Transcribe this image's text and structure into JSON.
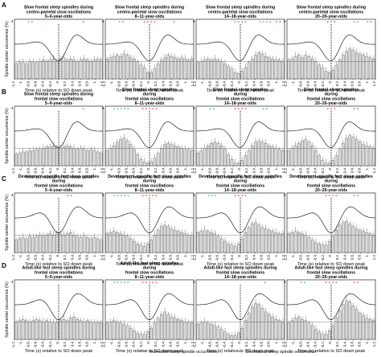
{
  "figure": {
    "x_axis_label": "Time (s) relative to SO down peak",
    "legend": {
      "increase_label": "Increased sleep spindle occurrence",
      "decrease_label": "Decreased sleep spindle occurrence",
      "increase_color": "#2ca25f",
      "decrease_color": "#d7263d"
    },
    "x_ticks": [
      "-1.2",
      "-1",
      "-0.8",
      "-0.6",
      "-0.4",
      "-0.2",
      "0",
      "0.2",
      "0.4",
      "0.6",
      "0.8",
      "1",
      "1.2"
    ]
  },
  "rows": [
    {
      "label": "A",
      "ylabel": "Spindle center occurrence (%)",
      "top_tick": "4"
    },
    {
      "label": "B",
      "ylabel": "Spindle center occurrence (%)",
      "top_tick": "4"
    },
    {
      "label": "C",
      "ylabel": "Spindle center occurrence (%)",
      "top_tick": "4"
    },
    {
      "label": "D",
      "ylabel": "Spindle center occurrence (%)",
      "top_tick": "4"
    }
  ],
  "chart_data": [
    {
      "type": "bar",
      "row": 0,
      "col": 0,
      "title": [
        "Slow frontal sleep spindles during",
        "centro-parietal slow oscillations",
        "5–6-year-olds"
      ],
      "curve": "down",
      "ylim": [
        0,
        4
      ],
      "values": [
        1.2,
        1.3,
        1.3,
        1.2,
        1.4,
        1.3,
        1.3,
        1.4,
        1.5,
        1.4,
        1.5,
        1.6,
        1.4,
        1.6,
        1.7,
        1.5,
        1.6,
        1.5,
        1.4,
        1.5,
        1.6,
        1.5,
        1.4,
        1.5,
        1.6,
        1.5
      ],
      "markers": [
        {
          "kind": "increase",
          "text": "* *",
          "pos": "left"
        },
        {
          "kind": "decrease",
          "text": "*",
          "pos": "right"
        }
      ]
    },
    {
      "type": "bar",
      "row": 0,
      "col": 1,
      "title": [
        "Slow frontal sleep spindles during",
        "centro-parietal slow oscillations",
        "8–11-year-olds"
      ],
      "curve": "down",
      "ylim": [
        0,
        4
      ],
      "values": [
        1.6,
        1.7,
        1.8,
        1.9,
        1.8,
        2.0,
        1.9,
        1.7,
        1.6,
        1.4,
        1.1,
        0.9,
        0.5,
        0.5,
        0.8,
        1.2,
        1.5,
        1.7,
        1.9,
        1.8,
        1.7,
        1.6,
        1.7,
        1.6,
        1.5,
        1.6
      ],
      "markers": [
        {
          "kind": "increase",
          "text": "* *",
          "pos": "left"
        },
        {
          "kind": "decrease",
          "text": "* * * *",
          "pos": "center"
        },
        {
          "kind": "increase",
          "text": "*",
          "pos": "right"
        }
      ]
    },
    {
      "type": "bar",
      "row": 0,
      "col": 2,
      "title": [
        "Slow frontal sleep spindles during",
        "centro-parietal slow oscillations",
        "14–18-year-olds"
      ],
      "curve": "down",
      "ylim": [
        0,
        4
      ],
      "values": [
        1.3,
        1.4,
        1.5,
        1.6,
        1.5,
        1.6,
        1.5,
        1.4,
        1.2,
        1.0,
        0.8,
        0.5,
        0.4,
        0.6,
        0.9,
        1.3,
        1.6,
        1.9,
        2.1,
        2.0,
        1.8,
        1.7,
        1.6,
        1.5,
        1.5,
        1.4
      ],
      "markers": [
        {
          "kind": "decrease",
          "text": "* * * *",
          "pos": "center"
        },
        {
          "kind": "increase",
          "text": "* * * *",
          "pos": "right"
        },
        {
          "kind": "decrease",
          "text": "* *",
          "pos": "far-right"
        }
      ]
    },
    {
      "type": "bar",
      "row": 0,
      "col": 3,
      "title": [
        "Slow frontal sleep spindles during",
        "centro-parietal slow oscillations",
        "20–26-year-olds"
      ],
      "curve": "down",
      "ylim": [
        0,
        4
      ],
      "values": [
        1.5,
        1.6,
        1.8,
        1.9,
        1.7,
        1.9,
        1.8,
        1.6,
        1.4,
        1.1,
        0.9,
        0.6,
        0.5,
        0.7,
        1.1,
        1.5,
        1.9,
        2.2,
        2.4,
        2.3,
        2.1,
        2.0,
        1.9,
        1.8,
        1.7,
        1.6
      ],
      "markers": [
        {
          "kind": "decrease",
          "text": "* * *",
          "pos": "center"
        },
        {
          "kind": "increase",
          "text": "* *",
          "pos": "right"
        },
        {
          "kind": "decrease",
          "text": "* *",
          "pos": "far-right"
        }
      ]
    },
    {
      "type": "bar",
      "row": 1,
      "col": 0,
      "title": [
        "Slow frontal sleep spindles during",
        "frontal slow oscillations",
        "5–6-year-olds"
      ],
      "curve": "down",
      "ylim": [
        0,
        4
      ],
      "values": [
        0.9,
        1.0,
        1.1,
        1.1,
        1.2,
        1.2,
        1.3,
        1.3,
        1.4,
        1.5,
        1.5,
        1.6,
        1.5,
        1.4,
        1.5,
        1.6,
        1.5,
        1.4,
        1.3,
        1.4,
        1.3,
        1.2,
        1.3,
        1.2,
        1.1,
        1.0
      ],
      "markers": [
        {
          "kind": "decrease",
          "text": "*",
          "pos": "right"
        }
      ]
    },
    {
      "type": "bar",
      "row": 1,
      "col": 1,
      "title": [
        "Slow frontal sleep spindles",
        "during",
        "frontal slow oscillations",
        "8–11-year-olds"
      ],
      "curve": "down",
      "ylim": [
        0,
        4
      ],
      "values": [
        1.2,
        1.4,
        1.6,
        1.9,
        2.1,
        2.2,
        2.0,
        1.7,
        1.3,
        0.9,
        0.5,
        0.3,
        0.2,
        0.3,
        0.6,
        1.0,
        1.4,
        1.7,
        1.8,
        1.7,
        1.6,
        1.5,
        1.4,
        1.3,
        1.3,
        1.2
      ],
      "markers": [
        {
          "kind": "increase",
          "text": "* * * * *",
          "pos": "left"
        },
        {
          "kind": "decrease",
          "text": "* * * * *",
          "pos": "center"
        }
      ]
    },
    {
      "type": "bar",
      "row": 1,
      "col": 2,
      "title": [
        "Slow frontal sleep spindles",
        "during",
        "frontal slow oscillations",
        "14–18-year-olds"
      ],
      "curve": "down",
      "ylim": [
        0,
        4
      ],
      "values": [
        1.0,
        1.2,
        1.4,
        1.6,
        1.8,
        1.9,
        1.8,
        1.6,
        1.3,
        0.9,
        0.5,
        0.2,
        0.2,
        0.4,
        0.8,
        1.2,
        1.6,
        1.9,
        2.0,
        1.9,
        1.8,
        1.6,
        1.5,
        1.4,
        1.3,
        1.2
      ],
      "markers": [
        {
          "kind": "increase",
          "text": "* *",
          "pos": "left"
        },
        {
          "kind": "decrease",
          "text": "* * * *",
          "pos": "center"
        },
        {
          "kind": "increase",
          "text": "* *",
          "pos": "right"
        }
      ]
    },
    {
      "type": "bar",
      "row": 1,
      "col": 3,
      "title": [
        "Slow frontal sleep spindles",
        "during",
        "frontal slow oscillations",
        "20–26-year-olds"
      ],
      "curve": "down",
      "ylim": [
        0,
        4
      ],
      "values": [
        1.2,
        1.4,
        1.6,
        1.8,
        2.0,
        2.1,
        1.9,
        1.6,
        1.2,
        0.8,
        0.4,
        0.2,
        0.2,
        0.4,
        0.8,
        1.3,
        1.8,
        2.2,
        2.4,
        2.3,
        2.1,
        1.9,
        1.7,
        1.6,
        1.5,
        1.4
      ],
      "markers": [
        {
          "kind": "decrease",
          "text": "* * *",
          "pos": "center"
        },
        {
          "kind": "decrease",
          "text": "* *",
          "pos": "right"
        }
      ]
    },
    {
      "type": "bar",
      "row": 2,
      "col": 0,
      "title": [
        "Develoment-specific fast sleep spindles",
        "during",
        "frontal slow oscillations",
        "5–6-year-olds"
      ],
      "curve": "up",
      "ylim": [
        0,
        4
      ],
      "values": [
        1.0,
        1.1,
        1.2,
        1.1,
        1.3,
        1.2,
        1.3,
        1.4,
        1.3,
        1.4,
        1.5,
        1.4,
        1.6,
        1.5,
        1.4,
        1.5,
        1.6,
        1.4,
        1.3,
        1.2,
        1.3,
        1.2,
        1.1,
        1.2,
        1.1,
        1.0
      ],
      "markers": [
        {
          "kind": "decrease",
          "text": "* *",
          "pos": "center-right"
        }
      ]
    },
    {
      "type": "bar",
      "row": 2,
      "col": 1,
      "title": [
        "Development-specific fast sleep spindles",
        "during",
        "frontal slow oscillations",
        "8–11-year-olds"
      ],
      "curve": "up",
      "ylim": [
        0,
        4
      ],
      "values": [
        1.5,
        1.6,
        1.7,
        1.6,
        1.5,
        1.4,
        1.3,
        1.1,
        0.9,
        0.7,
        0.6,
        0.5,
        0.7,
        1.0,
        1.4,
        1.8,
        2.1,
        2.2,
        2.1,
        1.9,
        1.8,
        1.7,
        1.6,
        1.5,
        1.4,
        1.4
      ],
      "markers": [
        {
          "kind": "increase",
          "text": "* * * * *",
          "pos": "left"
        },
        {
          "kind": "decrease",
          "text": "* * * * *",
          "pos": "center"
        }
      ]
    },
    {
      "type": "bar",
      "row": 2,
      "col": 2,
      "title": [
        "Development-specific fast sleep spindles",
        "during",
        "frontal slow oscillations",
        "14–18-year-olds"
      ],
      "curve": "up",
      "ylim": [
        0,
        4
      ],
      "values": [
        1.6,
        1.7,
        1.8,
        1.7,
        1.6,
        1.5,
        1.3,
        1.1,
        0.9,
        0.7,
        0.6,
        0.5,
        0.7,
        1.1,
        1.6,
        2.0,
        2.3,
        2.4,
        2.2,
        2.0,
        1.9,
        1.8,
        1.7,
        1.6,
        1.5,
        1.5
      ],
      "markers": [
        {
          "kind": "increase",
          "text": "* * *",
          "pos": "left"
        },
        {
          "kind": "decrease",
          "text": "* * * *",
          "pos": "center"
        }
      ]
    },
    {
      "type": "bar",
      "row": 2,
      "col": 3,
      "title": [
        "Development-specific fast sleep spindles",
        "during",
        "frontal slow oscillations",
        "20–26-year-olds"
      ],
      "curve": "up",
      "ylim": [
        0,
        4
      ],
      "values": [
        1.5,
        1.6,
        1.7,
        1.6,
        1.5,
        1.4,
        1.2,
        1.0,
        0.8,
        0.7,
        0.6,
        0.6,
        0.9,
        1.3,
        1.8,
        2.2,
        2.4,
        2.5,
        2.3,
        2.1,
        1.9,
        1.8,
        1.7,
        1.6,
        1.5,
        1.4
      ],
      "markers": [
        {
          "kind": "decrease",
          "text": "* * * *",
          "pos": "center"
        },
        {
          "kind": "decrease",
          "text": "* *",
          "pos": "right"
        }
      ]
    },
    {
      "type": "bar",
      "row": 3,
      "col": 0,
      "title": [
        "Adult-like fast sleep spindles during",
        "frontal slow oscillations",
        "5–6-year-olds"
      ],
      "curve": "up",
      "ylim": [
        0,
        4
      ],
      "values": [
        1.4,
        1.5,
        1.6,
        1.5,
        1.4,
        1.5,
        1.6,
        1.5,
        1.4,
        1.5,
        1.4,
        1.3,
        1.4,
        1.5,
        1.6,
        1.5,
        1.7,
        1.8,
        1.6,
        1.5,
        1.4,
        1.5,
        1.4,
        1.3,
        1.4,
        1.3
      ],
      "markers": []
    },
    {
      "type": "bar",
      "row": 3,
      "col": 1,
      "title": [
        "Adult-like fast sleep spindles",
        "during",
        "frontal slow oscillations",
        "8–11-year-olds"
      ],
      "curve": "up",
      "ylim": [
        0,
        4
      ],
      "values": [
        1.3,
        1.4,
        1.5,
        1.4,
        1.3,
        1.2,
        1.1,
        0.9,
        0.7,
        0.5,
        0.4,
        0.4,
        0.6,
        0.9,
        1.3,
        1.7,
        2.0,
        2.2,
        2.0,
        1.8,
        1.7,
        1.6,
        1.5,
        1.4,
        1.4,
        1.3
      ],
      "markers": [
        {
          "kind": "increase",
          "text": "* * * * *",
          "pos": "left"
        },
        {
          "kind": "decrease",
          "text": "* * * * *",
          "pos": "center"
        }
      ]
    },
    {
      "type": "bar",
      "row": 3,
      "col": 2,
      "title": [
        "Adult-like fast sleep spindles during",
        "frontal slow oscillations",
        "14–18-year-olds"
      ],
      "curve": "up",
      "ylim": [
        0,
        4
      ],
      "values": [
        1.2,
        1.3,
        1.4,
        1.3,
        1.2,
        1.1,
        1.0,
        0.8,
        0.6,
        0.4,
        0.3,
        0.3,
        0.5,
        0.9,
        1.5,
        2.1,
        2.6,
        2.9,
        2.8,
        2.5,
        2.2,
        2.0,
        1.8,
        1.6,
        1.5,
        1.4
      ],
      "markers": [
        {
          "kind": "decrease",
          "text": "*",
          "pos": "right"
        }
      ]
    },
    {
      "type": "bar",
      "row": 3,
      "col": 3,
      "title": [
        "Adult-like fast sleep spindles during",
        "frontal slow oscillations",
        "20–26-year-olds"
      ],
      "curve": "up",
      "ylim": [
        0,
        4
      ],
      "values": [
        1.3,
        1.5,
        1.7,
        1.8,
        1.6,
        1.5,
        1.3,
        1.1,
        0.8,
        0.6,
        0.4,
        0.4,
        0.7,
        1.1,
        1.7,
        2.3,
        2.8,
        3.1,
        3.0,
        2.7,
        2.4,
        2.1,
        1.9,
        1.7,
        1.6,
        1.5
      ],
      "markers": [
        {
          "kind": "increase",
          "text": "* *",
          "pos": "left"
        },
        {
          "kind": "decrease",
          "text": "* * * *",
          "pos": "center"
        },
        {
          "kind": "decrease",
          "text": "* *",
          "pos": "right"
        }
      ]
    }
  ]
}
